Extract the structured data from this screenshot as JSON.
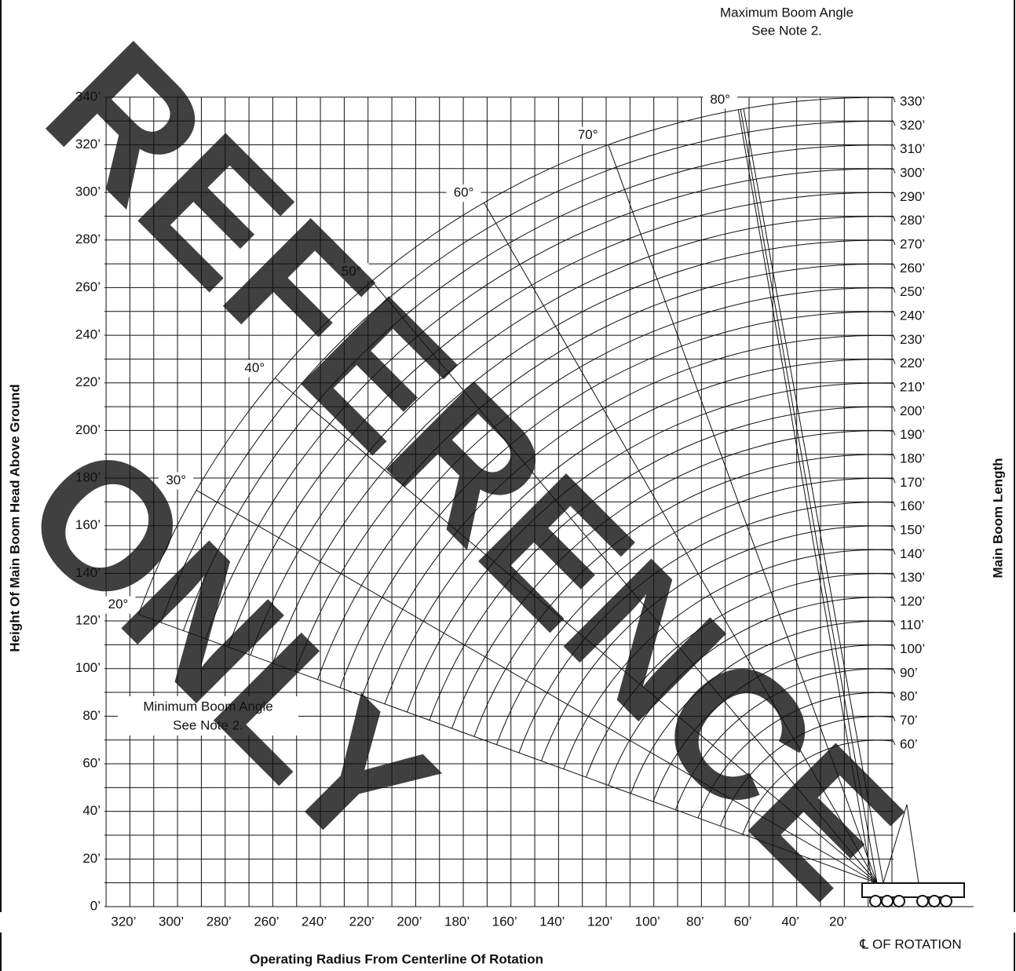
{
  "max_note": [
    "Maximum Boom Angle",
    "See Note 2."
  ],
  "min_note": [
    "Minimum Boom Angle",
    "See Note 2."
  ],
  "y_title": "Height Of Main Boom Head Above Ground",
  "x_title": "Operating Radius From Centerline Of Rotation",
  "right_title": "Main Boom Length",
  "centerline": "℄ OF ROTATION",
  "height_labels": [
    "0’",
    "20’",
    "40’",
    "60’",
    "80’",
    "100’",
    "120’",
    "140’",
    "160’",
    "180’",
    "200’",
    "220’",
    "240’",
    "260’",
    "280’",
    "300’",
    "320’",
    "340’"
  ],
  "radius_labels": [
    "320’",
    "300’",
    "280’",
    "260’",
    "240’",
    "220’",
    "200’",
    "180’",
    "160’",
    "140’",
    "120’",
    "100’",
    "80’",
    "60’",
    "40’",
    "20’"
  ],
  "boom_length_labels": [
    "330’",
    "320’",
    "310’",
    "300’",
    "290’",
    "280’",
    "270’",
    "260’",
    "250’",
    "240’",
    "230’",
    "220’",
    "210’",
    "200’",
    "190’",
    "180’",
    "170’",
    "160’",
    "150’",
    "140’",
    "130’",
    "120’",
    "110’",
    "100’",
    "90’",
    "80’",
    "70’",
    "60’"
  ],
  "angle_labels": [
    "20°",
    "30°",
    "40°",
    "50°",
    "60°",
    "70°",
    "80°"
  ],
  "watermark": [
    "REFERENCE",
    "ONLY"
  ]
}
